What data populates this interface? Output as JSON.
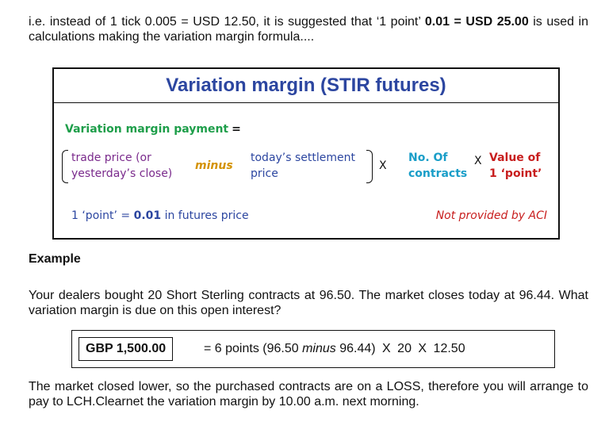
{
  "intro": {
    "part1": "i.e. instead of 1 tick 0.005 = USD 12.50, it is suggested that ‘1 point’ ",
    "bold1": "0.01 = USD 25.00",
    "part2": " is used in calculations making the variation margin formula...."
  },
  "formula": {
    "title": "Variation margin (STIR futures)",
    "payment_label": "Variation margin payment",
    "equals": "=",
    "trade_line1": "trade price (or",
    "trade_line2": "yesterday’s close)",
    "minus": "minus",
    "settle_line1": "today’s settlement",
    "settle_line2": "price",
    "times": "X",
    "contracts_line1": "No. Of",
    "contracts_line2": "contracts",
    "value_line1": "Value of",
    "value_line2": "1 ‘point’",
    "point_note_pre": "1 ‘point’ = ",
    "point_note_bold": "0.01",
    "point_note_post": " in futures price",
    "aci_note": "Not provided by ACI"
  },
  "example": {
    "heading": "Example",
    "question": "Your dealers bought 20 Short Sterling contracts at 96.50. The market closes today at 96.44. What variation margin is due on this open interest?",
    "answer_value": "GBP 1,500.00",
    "calc_pre": "= 6 points (96.50 ",
    "calc_minus": "minus",
    "calc_mid": " 96.44)",
    "calc_x": "X",
    "calc_contracts": "20",
    "calc_value": "12.50",
    "conclusion": "The market closed lower, so the purchased contracts are on a LOSS, therefore you will arrange to pay to LCH.Clearnet the variation margin by 10.00 a.m. next morning."
  }
}
